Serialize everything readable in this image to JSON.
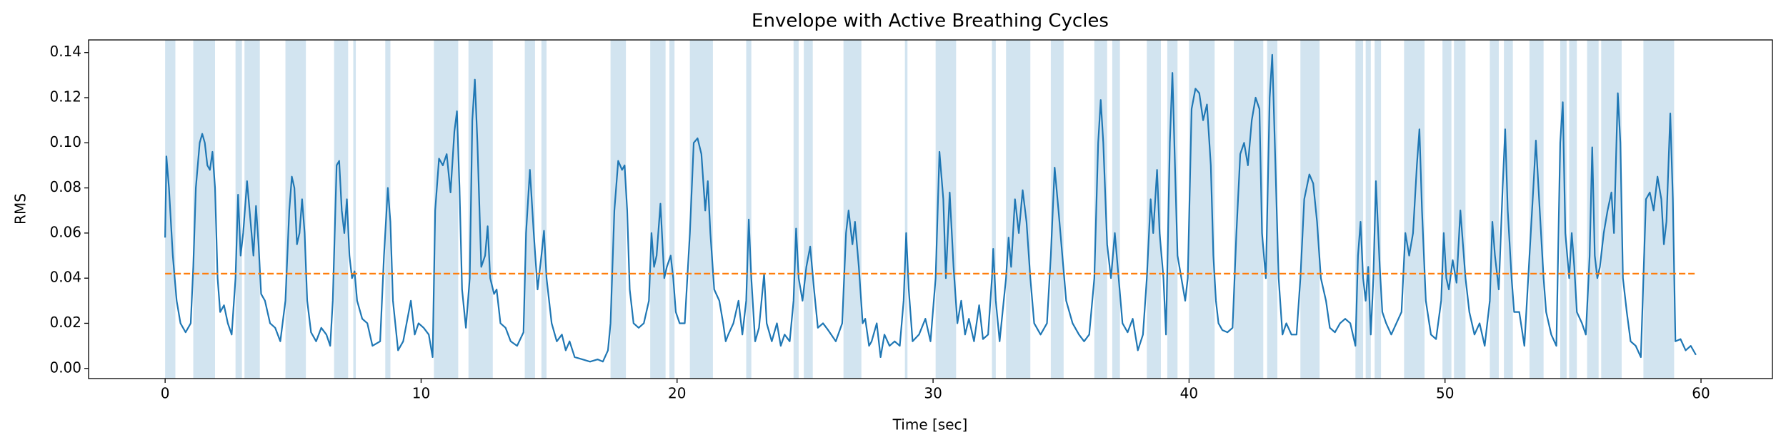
{
  "chart_data": {
    "type": "line",
    "title": "Envelope with Active Breathing Cycles",
    "xlabel": "Time [sec]",
    "ylabel": "RMS",
    "xlim": [
      -2.99,
      62.79
    ],
    "ylim": [
      -0.0045,
      0.1456
    ],
    "xticks": [
      0,
      10,
      20,
      30,
      40,
      50,
      60
    ],
    "yticks": [
      {
        "value": 0,
        "label": "0.00"
      },
      0.02,
      0.04,
      0.06,
      0.08,
      {
        "value": 0.1,
        "label": "0.10"
      },
      0.12,
      0.14
    ],
    "threshold": 0.042,
    "threshold_x": [
      0,
      59.8
    ],
    "threshold_color": "#ff7f0e",
    "span_color": "#1f77b4",
    "spans": [
      [
        0,
        0.4
      ],
      [
        1.1,
        1.95
      ],
      [
        2.75,
        3.0
      ],
      [
        3.1,
        3.7
      ],
      [
        4.7,
        5.5
      ],
      [
        6.6,
        7.15
      ],
      [
        7.35,
        7.45
      ],
      [
        8.6,
        8.8
      ],
      [
        10.5,
        11.45
      ],
      [
        11.85,
        12.8
      ],
      [
        14.05,
        14.45
      ],
      [
        14.7,
        14.9
      ],
      [
        17.4,
        18.0
      ],
      [
        18.95,
        19.55
      ],
      [
        19.7,
        19.9
      ],
      [
        20.5,
        21.4
      ],
      [
        22.7,
        22.9
      ],
      [
        24.55,
        24.75
      ],
      [
        24.95,
        25.3
      ],
      [
        26.5,
        27.2
      ],
      [
        28.9,
        29.0
      ],
      [
        30.1,
        30.9
      ],
      [
        32.3,
        32.45
      ],
      [
        32.85,
        33.8
      ],
      [
        34.6,
        35.1
      ],
      [
        36.3,
        36.8
      ],
      [
        37.0,
        37.3
      ],
      [
        38.35,
        38.9
      ],
      [
        39.15,
        39.55
      ],
      [
        40.0,
        41.0
      ],
      [
        41.75,
        42.9
      ],
      [
        43.05,
        43.45
      ],
      [
        44.35,
        45.1
      ],
      [
        46.5,
        46.8
      ],
      [
        46.9,
        47.1
      ],
      [
        47.25,
        47.5
      ],
      [
        48.4,
        49.2
      ],
      [
        49.9,
        50.25
      ],
      [
        50.35,
        50.8
      ],
      [
        51.75,
        52.1
      ],
      [
        52.3,
        52.65
      ],
      [
        53.3,
        53.85
      ],
      [
        54.5,
        54.75
      ],
      [
        54.85,
        55.15
      ],
      [
        55.55,
        56.0
      ],
      [
        56.1,
        56.9
      ],
      [
        57.75,
        58.95
      ]
    ],
    "x": [
      0,
      0.05,
      0.15,
      0.3,
      0.45,
      0.6,
      0.8,
      1.0,
      1.1,
      1.2,
      1.35,
      1.45,
      1.55,
      1.65,
      1.75,
      1.85,
      1.95,
      2.05,
      2.15,
      2.3,
      2.45,
      2.6,
      2.75,
      2.85,
      2.95,
      3.05,
      3.2,
      3.3,
      3.45,
      3.55,
      3.65,
      3.75,
      3.9,
      4.1,
      4.3,
      4.5,
      4.7,
      4.85,
      4.95,
      5.05,
      5.15,
      5.25,
      5.35,
      5.45,
      5.55,
      5.7,
      5.9,
      6.1,
      6.3,
      6.45,
      6.55,
      6.7,
      6.8,
      6.9,
      7.0,
      7.1,
      7.2,
      7.3,
      7.4,
      7.5,
      7.7,
      7.9,
      8.1,
      8.4,
      8.55,
      8.7,
      8.8,
      8.9,
      9.1,
      9.3,
      9.6,
      9.75,
      9.9,
      10.1,
      10.3,
      10.45,
      10.55,
      10.7,
      10.85,
      11.0,
      11.15,
      11.3,
      11.4,
      11.5,
      11.6,
      11.75,
      11.9,
      12.0,
      12.1,
      12.2,
      12.35,
      12.5,
      12.6,
      12.7,
      12.85,
      12.95,
      13.1,
      13.3,
      13.5,
      13.75,
      14.0,
      14.1,
      14.25,
      14.4,
      14.55,
      14.7,
      14.8,
      14.9,
      15.1,
      15.3,
      15.5,
      15.65,
      15.8,
      16.0,
      16.3,
      16.6,
      16.9,
      17.1,
      17.3,
      17.4,
      17.55,
      17.7,
      17.85,
      17.95,
      18.05,
      18.15,
      18.3,
      18.5,
      18.7,
      18.9,
      19.0,
      19.1,
      19.2,
      19.35,
      19.5,
      19.6,
      19.75,
      19.85,
      19.95,
      20.1,
      20.3,
      20.5,
      20.65,
      20.8,
      20.95,
      21.1,
      21.2,
      21.3,
      21.45,
      21.65,
      21.8,
      21.9,
      22.0,
      22.2,
      22.4,
      22.55,
      22.7,
      22.8,
      22.9,
      23.05,
      23.2,
      23.4,
      23.5,
      23.7,
      23.9,
      24.05,
      24.2,
      24.4,
      24.55,
      24.65,
      24.75,
      24.9,
      25.05,
      25.2,
      25.35,
      25.5,
      25.7,
      25.9,
      26.2,
      26.45,
      26.6,
      26.7,
      26.85,
      26.95,
      27.1,
      27.25,
      27.35,
      27.5,
      27.6,
      27.8,
      27.95,
      28.1,
      28.3,
      28.5,
      28.7,
      28.85,
      28.95,
      29.05,
      29.2,
      29.45,
      29.7,
      29.9,
      30.1,
      30.25,
      30.4,
      30.5,
      30.65,
      30.8,
      30.95,
      31.1,
      31.25,
      31.4,
      31.6,
      31.8,
      31.95,
      32.15,
      32.3,
      32.35,
      32.45,
      32.6,
      32.85,
      32.95,
      33.05,
      33.2,
      33.35,
      33.5,
      33.65,
      33.8,
      33.95,
      34.2,
      34.45,
      34.6,
      34.75,
      34.9,
      35.05,
      35.2,
      35.45,
      35.7,
      35.9,
      36.1,
      36.3,
      36.45,
      36.55,
      36.65,
      36.8,
      36.95,
      37.1,
      37.25,
      37.4,
      37.6,
      37.8,
      38.0,
      38.2,
      38.35,
      38.5,
      38.6,
      38.75,
      38.85,
      39.0,
      39.1,
      39.25,
      39.35,
      39.45,
      39.55,
      39.7,
      39.85,
      39.95,
      40.1,
      40.25,
      40.4,
      40.55,
      40.7,
      40.85,
      40.95,
      41.05,
      41.15,
      41.3,
      41.5,
      41.7,
      41.85,
      42.0,
      42.15,
      42.3,
      42.45,
      42.6,
      42.75,
      42.85,
      43.0,
      43.15,
      43.25,
      43.35,
      43.5,
      43.65,
      43.8,
      44.0,
      44.2,
      44.35,
      44.5,
      44.7,
      44.85,
      45.0,
      45.15,
      45.35,
      45.5,
      45.7,
      45.9,
      46.1,
      46.3,
      46.5,
      46.6,
      46.7,
      46.8,
      46.9,
      47.0,
      47.1,
      47.2,
      47.3,
      47.45,
      47.55,
      47.7,
      47.9,
      48.1,
      48.3,
      48.45,
      48.6,
      48.75,
      48.9,
      49.0,
      49.1,
      49.25,
      49.45,
      49.65,
      49.85,
      49.95,
      50.05,
      50.15,
      50.3,
      50.45,
      50.6,
      50.7,
      50.8,
      50.95,
      51.15,
      51.35,
      51.55,
      51.75,
      51.85,
      51.95,
      52.1,
      52.25,
      52.35,
      52.45,
      52.6,
      52.7,
      52.9,
      53.1,
      53.25,
      53.45,
      53.55,
      53.7,
      53.85,
      53.95,
      54.15,
      54.35,
      54.5,
      54.6,
      54.7,
      54.85,
      54.95,
      55.05,
      55.15,
      55.35,
      55.5,
      55.65,
      55.75,
      55.85,
      55.95,
      56.05,
      56.2,
      56.35,
      56.5,
      56.6,
      56.75,
      56.85,
      56.95,
      57.1,
      57.25,
      57.45,
      57.65,
      57.75,
      57.85,
      58.0,
      58.15,
      58.3,
      58.45,
      58.55,
      58.65,
      58.8,
      58.9,
      59.0,
      59.2,
      59.4,
      59.6,
      59.8
    ],
    "series": [
      {
        "color": "#1f77b4",
        "values": [
          0.058,
          0.094,
          0.08,
          0.05,
          0.03,
          0.02,
          0.016,
          0.02,
          0.045,
          0.08,
          0.1,
          0.104,
          0.1,
          0.09,
          0.088,
          0.096,
          0.08,
          0.04,
          0.025,
          0.028,
          0.02,
          0.015,
          0.04,
          0.077,
          0.05,
          0.06,
          0.083,
          0.07,
          0.05,
          0.072,
          0.055,
          0.033,
          0.03,
          0.02,
          0.018,
          0.012,
          0.03,
          0.07,
          0.085,
          0.08,
          0.055,
          0.06,
          0.075,
          0.06,
          0.03,
          0.016,
          0.012,
          0.018,
          0.015,
          0.01,
          0.03,
          0.09,
          0.092,
          0.07,
          0.06,
          0.075,
          0.05,
          0.04,
          0.043,
          0.03,
          0.022,
          0.02,
          0.01,
          0.012,
          0.05,
          0.08,
          0.065,
          0.03,
          0.008,
          0.012,
          0.03,
          0.015,
          0.02,
          0.018,
          0.015,
          0.005,
          0.07,
          0.093,
          0.09,
          0.095,
          0.078,
          0.105,
          0.114,
          0.08,
          0.035,
          0.018,
          0.04,
          0.11,
          0.128,
          0.1,
          0.045,
          0.05,
          0.063,
          0.04,
          0.033,
          0.035,
          0.02,
          0.018,
          0.012,
          0.01,
          0.016,
          0.06,
          0.088,
          0.06,
          0.035,
          0.05,
          0.061,
          0.04,
          0.02,
          0.012,
          0.015,
          0.008,
          0.012,
          0.005,
          0.004,
          0.003,
          0.004,
          0.003,
          0.008,
          0.02,
          0.07,
          0.092,
          0.088,
          0.09,
          0.07,
          0.035,
          0.02,
          0.018,
          0.02,
          0.03,
          0.06,
          0.045,
          0.05,
          0.073,
          0.04,
          0.045,
          0.05,
          0.04,
          0.025,
          0.02,
          0.02,
          0.06,
          0.1,
          0.102,
          0.095,
          0.07,
          0.083,
          0.06,
          0.035,
          0.03,
          0.02,
          0.012,
          0.015,
          0.02,
          0.03,
          0.015,
          0.03,
          0.066,
          0.04,
          0.012,
          0.018,
          0.042,
          0.02,
          0.012,
          0.02,
          0.01,
          0.015,
          0.012,
          0.03,
          0.062,
          0.04,
          0.03,
          0.045,
          0.054,
          0.035,
          0.018,
          0.02,
          0.017,
          0.012,
          0.02,
          0.06,
          0.07,
          0.055,
          0.065,
          0.045,
          0.02,
          0.022,
          0.01,
          0.012,
          0.02,
          0.005,
          0.015,
          0.01,
          0.012,
          0.01,
          0.03,
          0.06,
          0.035,
          0.012,
          0.015,
          0.022,
          0.012,
          0.04,
          0.096,
          0.075,
          0.04,
          0.078,
          0.045,
          0.02,
          0.03,
          0.015,
          0.022,
          0.012,
          0.028,
          0.013,
          0.015,
          0.04,
          0.053,
          0.03,
          0.012,
          0.04,
          0.058,
          0.045,
          0.075,
          0.06,
          0.079,
          0.065,
          0.04,
          0.02,
          0.015,
          0.02,
          0.05,
          0.089,
          0.07,
          0.05,
          0.03,
          0.02,
          0.015,
          0.012,
          0.015,
          0.04,
          0.1,
          0.119,
          0.1,
          0.055,
          0.04,
          0.06,
          0.04,
          0.02,
          0.016,
          0.022,
          0.008,
          0.015,
          0.04,
          0.075,
          0.06,
          0.088,
          0.06,
          0.04,
          0.015,
          0.1,
          0.131,
          0.09,
          0.05,
          0.04,
          0.03,
          0.04,
          0.115,
          0.124,
          0.122,
          0.11,
          0.117,
          0.09,
          0.05,
          0.03,
          0.02,
          0.017,
          0.016,
          0.018,
          0.06,
          0.095,
          0.1,
          0.09,
          0.11,
          0.12,
          0.115,
          0.06,
          0.04,
          0.12,
          0.139,
          0.1,
          0.04,
          0.015,
          0.02,
          0.015,
          0.015,
          0.04,
          0.075,
          0.086,
          0.082,
          0.065,
          0.04,
          0.03,
          0.018,
          0.016,
          0.02,
          0.022,
          0.02,
          0.01,
          0.05,
          0.065,
          0.04,
          0.03,
          0.045,
          0.015,
          0.04,
          0.083,
          0.045,
          0.025,
          0.02,
          0.015,
          0.02,
          0.025,
          0.06,
          0.05,
          0.06,
          0.09,
          0.106,
          0.07,
          0.03,
          0.015,
          0.013,
          0.03,
          0.06,
          0.04,
          0.035,
          0.048,
          0.038,
          0.07,
          0.055,
          0.04,
          0.025,
          0.015,
          0.02,
          0.01,
          0.03,
          0.065,
          0.05,
          0.035,
          0.08,
          0.106,
          0.07,
          0.04,
          0.025,
          0.025,
          0.01,
          0.04,
          0.08,
          0.101,
          0.07,
          0.04,
          0.025,
          0.015,
          0.01,
          0.1,
          0.118,
          0.06,
          0.04,
          0.06,
          0.045,
          0.025,
          0.02,
          0.015,
          0.05,
          0.098,
          0.05,
          0.04,
          0.045,
          0.06,
          0.07,
          0.078,
          0.06,
          0.122,
          0.1,
          0.04,
          0.025,
          0.012,
          0.01,
          0.005,
          0.04,
          0.075,
          0.078,
          0.07,
          0.085,
          0.075,
          0.055,
          0.065,
          0.113,
          0.075,
          0.012,
          0.013,
          0.008,
          0.01,
          0.006
        ]
      }
    ]
  }
}
